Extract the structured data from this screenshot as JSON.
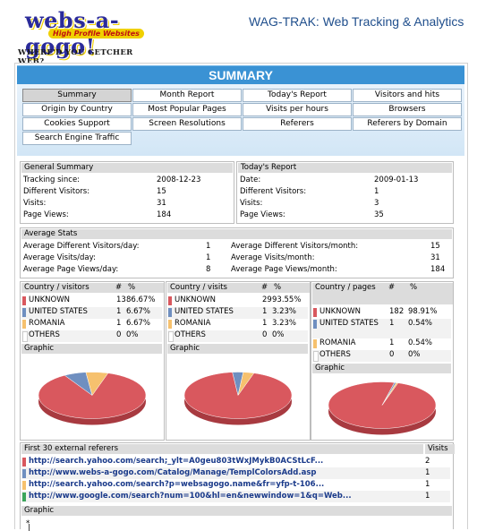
{
  "header": {
    "logo_text": "webs-a-gogo!",
    "logo_badge": "High Profile Websites",
    "logo_tagline": "WHERE'D YOU GETCHER WEB?",
    "app_title": "WAG-TRAK: Web Tracking & Analytics"
  },
  "summary_title": "SUMMARY",
  "nav": [
    {
      "label": "Summary",
      "active": true
    },
    {
      "label": "Month Report"
    },
    {
      "label": "Today's Report"
    },
    {
      "label": "Visitors and hits"
    },
    {
      "label": "Origin by Country"
    },
    {
      "label": "Most Popular Pages"
    },
    {
      "label": "Visits per hours"
    },
    {
      "label": "Browsers"
    },
    {
      "label": "Cookies Support"
    },
    {
      "label": "Screen Resolutions"
    },
    {
      "label": "Referers"
    },
    {
      "label": "Referers by Domain"
    },
    {
      "label": "Search Engine Traffic"
    }
  ],
  "general_summary": {
    "title": "General Summary",
    "rows": [
      {
        "label": "Tracking since:",
        "value": "2008-12-23"
      },
      {
        "label": "Different Visitors:",
        "value": "15"
      },
      {
        "label": "Visits:",
        "value": "31"
      },
      {
        "label": "Page Views:",
        "value": "184"
      }
    ]
  },
  "todays_report": {
    "title": "Today's Report",
    "rows": [
      {
        "label": "Date:",
        "value": "2009-01-13"
      },
      {
        "label": "Different Visitors:",
        "value": "1"
      },
      {
        "label": "Visits:",
        "value": "3"
      },
      {
        "label": "Page Views:",
        "value": "35"
      }
    ]
  },
  "average_stats": {
    "title": "Average Stats",
    "left": [
      {
        "label": "Average Different Visitors/day:",
        "value": "1"
      },
      {
        "label": "Average Visits/day:",
        "value": "1"
      },
      {
        "label": "Average Page Views/day:",
        "value": "8"
      }
    ],
    "right": [
      {
        "label": "Average Different Visitors/month:",
        "value": "15"
      },
      {
        "label": "Average Visits/month:",
        "value": "31"
      },
      {
        "label": "Average Page Views/month:",
        "value": "184"
      }
    ]
  },
  "country_tables": [
    {
      "title": "Country / visitors",
      "col_n": "#",
      "col_p": "%",
      "graphic_label": "Graphic",
      "rows": [
        {
          "name": "UNKNOWN",
          "n": "13",
          "p": "86.67%",
          "color": "#d9585e",
          "frac": 0.8667
        },
        {
          "name": "UNITED STATES",
          "n": "1",
          "p": "6.67%",
          "color": "#6f8fc0",
          "frac": 0.0667
        },
        {
          "name": "ROMANIA",
          "n": "1",
          "p": "6.67%",
          "color": "#f6c16e",
          "frac": 0.0667
        },
        {
          "name": "OTHERS",
          "n": "0",
          "p": "0%",
          "color": "#ffffff",
          "frac": 0
        }
      ]
    },
    {
      "title": "Country / visits",
      "col_n": "#",
      "col_p": "%",
      "graphic_label": "Graphic",
      "rows": [
        {
          "name": "UNKNOWN",
          "n": "29",
          "p": "93.55%",
          "color": "#d9585e",
          "frac": 0.9355
        },
        {
          "name": "UNITED STATES",
          "n": "1",
          "p": "3.23%",
          "color": "#6f8fc0",
          "frac": 0.0323
        },
        {
          "name": "ROMANIA",
          "n": "1",
          "p": "3.23%",
          "color": "#f6c16e",
          "frac": 0.0323
        },
        {
          "name": "OTHERS",
          "n": "0",
          "p": "0%",
          "color": "#ffffff",
          "frac": 0
        }
      ]
    },
    {
      "title": "Country / pages",
      "col_n": "#",
      "col_p": "%",
      "graphic_label": "Graphic",
      "rows": [
        {
          "name": "UNKNOWN",
          "n": "182",
          "p": "98.91%",
          "color": "#d9585e",
          "frac": 0.9891
        },
        {
          "name": "UNITED STATES",
          "n": "1",
          "p": "0.54%",
          "color": "#6f8fc0",
          "frac": 0.0054
        },
        {
          "name": "ROMANIA",
          "n": "1",
          "p": "0.54%",
          "color": "#f6c16e",
          "frac": 0.0054
        },
        {
          "name": "OTHERS",
          "n": "0",
          "p": "0%",
          "color": "#ffffff",
          "frac": 0
        }
      ]
    }
  ],
  "referers": {
    "title": "First 30 external referers",
    "col_visits": "Visits",
    "graphic_label": "Graphic",
    "rows": [
      {
        "url": "http://search.yahoo.com/search;_ylt=A0geu803tWxJMykB0ACStLcF...",
        "visits": "2",
        "color": "#d9585e"
      },
      {
        "url": "http://www.webs-a-gogo.com/Catalog/Manage/TemplColorsAdd.asp",
        "visits": "1",
        "color": "#6f8fc0"
      },
      {
        "url": "http://search.yahoo.com/search?p=websagogo.name&fr=yfp-t-106...",
        "visits": "1",
        "color": "#f6c16e"
      },
      {
        "url": "http://www.google.com/search?num=100&hl=en&newwindow=1&q=Web...",
        "visits": "1",
        "color": "#3aa55a"
      }
    ],
    "axis_tick": "*"
  }
}
